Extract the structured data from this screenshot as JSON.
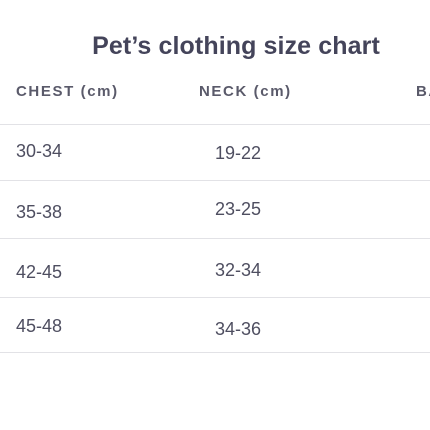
{
  "title": "Pet’s clothing size chart",
  "table": {
    "headers": [
      "CHEST (cm)",
      "NECK (cm)",
      "BA"
    ],
    "rows": [
      {
        "chest": "30-34",
        "neck": "19-22"
      },
      {
        "chest": "35-38",
        "neck": "23-25"
      },
      {
        "chest": "42-45",
        "neck": "32-34"
      },
      {
        "chest": "45-48",
        "neck": "34-36"
      }
    ]
  },
  "colors": {
    "text": "#4e4e60",
    "title": "#44445a",
    "divider": "#e2e2e6",
    "background": "#ffffff"
  }
}
